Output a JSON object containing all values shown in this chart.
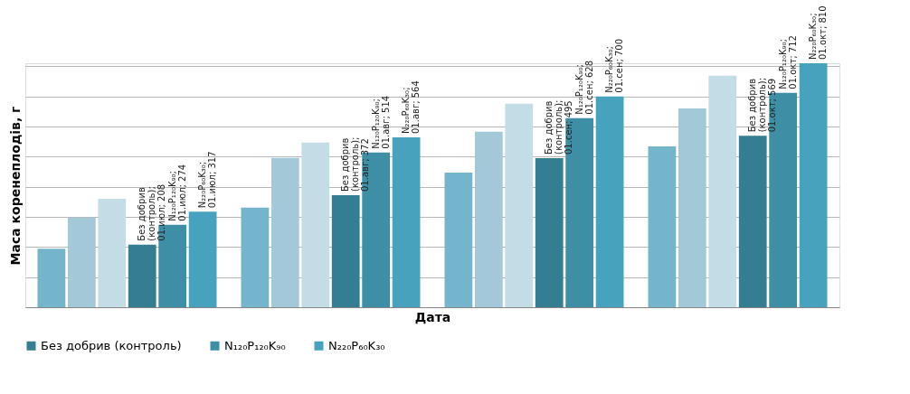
{
  "chart_data": {
    "type": "bar",
    "xlabel": "Дата",
    "ylabel": "Маса коренеплодів, г",
    "categories": [
      null,
      null,
      null,
      null
    ],
    "series": [
      {
        "color": "#74b5cc",
        "values": [
          194,
          331,
          447,
          534
        ]
      },
      {
        "color": "#a3c9d9",
        "values": [
          298,
          496,
          583,
          660
        ]
      },
      {
        "color": "#c3dce5",
        "values": [
          360,
          547,
          676,
          769
        ]
      },
      {
        "name": "Без добрив (контроль)",
        "color": "#357d91",
        "values": [
          208,
          372,
          495,
          569
        ],
        "value_labels": [
          "Без добрив (контроль); 01.июл; 208",
          "Без добрив (контроль); 01.авг; 372",
          "Без добрив (контроль); 01.сен; 495",
          "Без добрив (контроль); 01.окт; 569"
        ]
      },
      {
        "name": "N₁₂₀P₁₂₀K₉₀",
        "color": "#3e8fa6",
        "values": [
          274,
          514,
          628,
          712
        ],
        "value_labels": [
          "N₁₂₀P₁₂₀K₉₀; 01.июл; 274",
          "N₁₂₀P₁₂₀K₉₀; 01.авг; 514",
          "N₁₂₀P₁₂₀K₉₀; 01.сен; 628",
          "N₁₂₀P₁₂₀K₉₀; 01.окт; 712"
        ]
      },
      {
        "name": "N₂₂₀P₆₀K₃₀",
        "color": "#47a3bd",
        "values": [
          317,
          564,
          700,
          810
        ],
        "value_labels": [
          "N₂₂₀P₆₀K₃₀; 01.июл; 317",
          "N₂₂₀P₆₀K₃₀; 01.авг; 564",
          "N₂₂₀P₆₀K₃₀; 01.сен; 700",
          "N₂₂₀P₆₀K₃₀; 01.окт; 810"
        ]
      }
    ],
    "grid": "y",
    "tick_labels": false,
    "legend": "bottom"
  }
}
